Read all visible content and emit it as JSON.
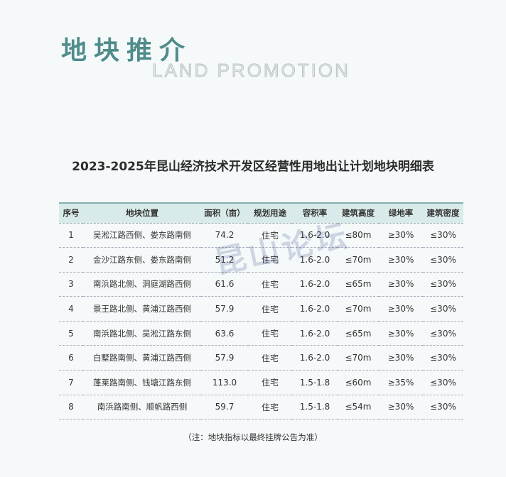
{
  "header": {
    "title_cn": "地块推介",
    "title_en": "LAND PROMOTION"
  },
  "table": {
    "title": "2023-2025年昆山经济技术开发区经营性用地出让计划地块明细表",
    "columns": [
      "序号",
      "地块位置",
      "面积（亩）",
      "规划用途",
      "容积率",
      "建筑高度",
      "绿地率",
      "建筑密度"
    ],
    "rows": [
      [
        "1",
        "吴淞江路西侧、娄东路南侧",
        "74.2",
        "住宅",
        "1.6-2.0",
        "≤80m",
        "≥30%",
        "≤30%"
      ],
      [
        "2",
        "金沙江路东侧、娄东路南侧",
        "51.2",
        "住宅",
        "1.6-2.0",
        "≤70m",
        "≥30%",
        "≤30%"
      ],
      [
        "3",
        "南浜路北侧、洞庭湖路西侧",
        "61.6",
        "住宅",
        "1.6-2.0",
        "≤65m",
        "≥30%",
        "≤30%"
      ],
      [
        "4",
        "景王路北侧、黄浦江路西侧",
        "57.9",
        "住宅",
        "1.6-2.0",
        "≤70m",
        "≥30%",
        "≤30%"
      ],
      [
        "5",
        "南浜路北侧、吴淞江路东侧",
        "63.6",
        "住宅",
        "1.6-2.0",
        "≤65m",
        "≥30%",
        "≤30%"
      ],
      [
        "6",
        "白墅路南侧、黄浦江路西侧",
        "57.9",
        "住宅",
        "1.6-2.0",
        "≤70m",
        "≥30%",
        "≤30%"
      ],
      [
        "7",
        "蓬莱路南侧、钱塘江路东侧",
        "113.0",
        "住宅",
        "1.5-1.8",
        "≤60m",
        "≥35%",
        "≤30%"
      ],
      [
        "8",
        "南浜路南侧、顺帆路西侧",
        "59.7",
        "住宅",
        "1.5-1.8",
        "≤54m",
        "≥30%",
        "≤30%"
      ]
    ],
    "note": "（注：地块指标以最终挂牌公告为准）"
  },
  "watermark": "昆山论坛",
  "colors": {
    "accent": "#4f8c8a",
    "header_bg": "#d8ebea"
  }
}
